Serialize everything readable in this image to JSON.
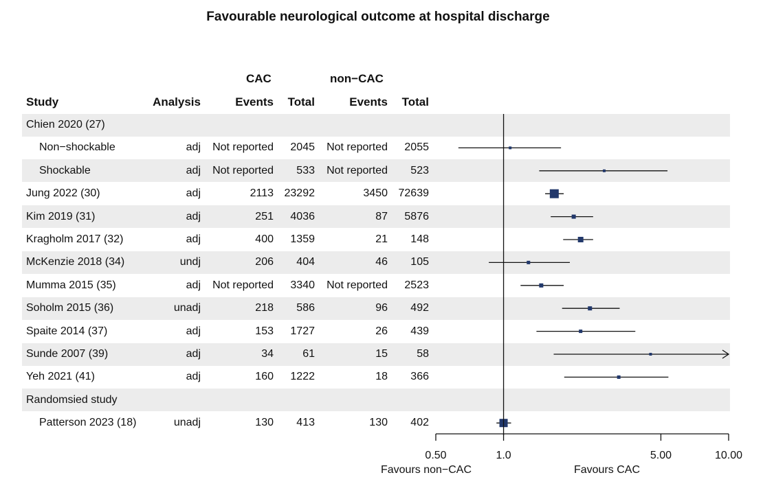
{
  "chart_data": {
    "type": "forest",
    "title": "Favourable neurological outcome at hospital discharge",
    "header_groups": {
      "cac": "CAC",
      "noncac": "non−CAC"
    },
    "columns": {
      "study": "Study",
      "analysis": "Analysis",
      "events": "Events",
      "total": "Total"
    },
    "x_scale": "log",
    "xlim": [
      0.5,
      10.0
    ],
    "reference_line": 1.0,
    "x_ticks": [
      "0.50",
      "1.0",
      "5.00",
      "10.00"
    ],
    "favours_left": "Favours non−CAC",
    "favours_right": "Favours CAC",
    "rows": [
      {
        "label": "Chien 2020 (27)",
        "heading": true,
        "indent": false
      },
      {
        "label": "Non−shockable",
        "indent": true,
        "analysis": "adj",
        "cac_events": "Not reported",
        "cac_total": "2045",
        "non_events": "Not reported",
        "non_total": "2055",
        "est": 1.07,
        "lo": 0.63,
        "hi": 1.8,
        "size": 4
      },
      {
        "label": "Shockable",
        "indent": true,
        "analysis": "adj",
        "cac_events": "Not reported",
        "cac_total": "533",
        "non_events": "Not reported",
        "non_total": "523",
        "est": 2.8,
        "lo": 1.44,
        "hi": 5.35,
        "size": 4
      },
      {
        "label": "Jung 2022 (30)",
        "indent": false,
        "analysis": "adj",
        "cac_events": "2113",
        "cac_total": "23292",
        "non_events": "3450",
        "non_total": "72639",
        "est": 1.68,
        "lo": 1.53,
        "hi": 1.85,
        "size": 13
      },
      {
        "label": "Kim 2019 (31)",
        "indent": false,
        "analysis": "adj",
        "cac_events": "251",
        "cac_total": "4036",
        "non_events": "87",
        "non_total": "5876",
        "est": 2.05,
        "lo": 1.62,
        "hi": 2.5,
        "size": 6
      },
      {
        "label": "Kragholm 2017 (32)",
        "indent": false,
        "analysis": "adj",
        "cac_events": "400",
        "cac_total": "1359",
        "non_events": "21",
        "non_total": "148",
        "est": 2.2,
        "lo": 1.84,
        "hi": 2.5,
        "size": 8
      },
      {
        "label": "McKenzie 2018 (34)",
        "indent": false,
        "analysis": "undj",
        "cac_events": "206",
        "cac_total": "404",
        "non_events": "46",
        "non_total": "105",
        "est": 1.29,
        "lo": 0.86,
        "hi": 1.97,
        "size": 5
      },
      {
        "label": "Mumma 2015 (35)",
        "indent": false,
        "analysis": "adj",
        "cac_events": "Not reported",
        "cac_total": "3340",
        "non_events": "Not reported",
        "non_total": "2523",
        "est": 1.47,
        "lo": 1.19,
        "hi": 1.85,
        "size": 6
      },
      {
        "label": "Soholm 2015 (36)",
        "indent": false,
        "analysis": "unadj",
        "cac_events": "218",
        "cac_total": "586",
        "non_events": "96",
        "non_total": "492",
        "est": 2.42,
        "lo": 1.82,
        "hi": 3.28,
        "size": 6
      },
      {
        "label": "Spaite 2014 (37)",
        "indent": false,
        "analysis": "adj",
        "cac_events": "153",
        "cac_total": "1727",
        "non_events": "26",
        "non_total": "439",
        "est": 2.2,
        "lo": 1.4,
        "hi": 3.85,
        "size": 5
      },
      {
        "label": "Sunde 2007 (39)",
        "indent": false,
        "analysis": "adj",
        "cac_events": "34",
        "cac_total": "61",
        "non_events": "15",
        "non_total": "58",
        "est": 4.5,
        "lo": 1.67,
        "hi": 10.0,
        "size": 4,
        "arrow": true
      },
      {
        "label": "Yeh 2021 (41)",
        "indent": false,
        "analysis": "adj",
        "cac_events": "160",
        "cac_total": "1222",
        "non_events": "18",
        "non_total": "366",
        "est": 3.25,
        "lo": 1.86,
        "hi": 5.4,
        "size": 5
      },
      {
        "label": "Randomsied study",
        "heading": true,
        "indent": false
      },
      {
        "label": "Patterson 2023 (18)",
        "indent": true,
        "analysis": "unadj",
        "cac_events": "130",
        "cac_total": "413",
        "non_events": "130",
        "non_total": "402",
        "est": 1.0,
        "lo": 0.93,
        "hi": 1.08,
        "size": 12
      }
    ]
  }
}
